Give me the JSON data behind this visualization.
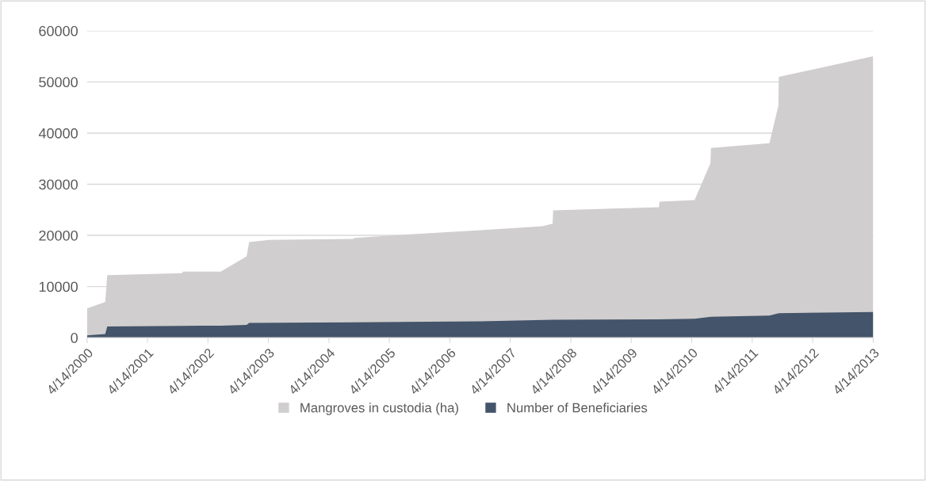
{
  "chart_data": {
    "type": "area",
    "series": [
      {
        "name": "Mangroves in custodia (ha)",
        "color": "#d0cece",
        "x": [
          "2000-04-14",
          "2000-08-02",
          "2000-08-14",
          "2001-11-10",
          "2001-11-14",
          "2002-07-01",
          "2002-12-04",
          "2002-12-19",
          "2003-04-19",
          "2004-09-10",
          "2004-09-14",
          "2005-08-14",
          "2006-10-17",
          "2007-10-25",
          "2007-12-26",
          "2007-12-29",
          "2009-09-28",
          "2009-10-01",
          "2010-05-01",
          "2010-08-05",
          "2010-08-08",
          "2011-07-27",
          "2011-09-19",
          "2011-09-22",
          "2013-04-14"
        ],
        "values": [
          5700,
          7000,
          12200,
          12600,
          12900,
          12900,
          15900,
          18700,
          19100,
          19300,
          19500,
          20200,
          21000,
          21800,
          22300,
          24900,
          25500,
          26600,
          26900,
          34100,
          37100,
          38000,
          45300,
          51000,
          55000
        ]
      },
      {
        "name": "Number of Beneficiaries",
        "color": "#44546a",
        "x": [
          "2000-04-14",
          "2000-08-02",
          "2000-08-14",
          "2001-11-14",
          "2002-07-01",
          "2002-12-04",
          "2002-12-19",
          "2004-09-14",
          "2006-10-17",
          "2007-12-29",
          "2009-10-01",
          "2010-05-01",
          "2010-08-08",
          "2011-07-27",
          "2011-09-22",
          "2013-04-14"
        ],
        "values": [
          450,
          700,
          2200,
          2300,
          2350,
          2500,
          2900,
          3000,
          3200,
          3500,
          3600,
          3700,
          4100,
          4300,
          4800,
          5000
        ]
      }
    ],
    "xlim": [
      "2000-04-14",
      "2013-04-14"
    ],
    "xticks": [
      {
        "value": "2000-04-14",
        "label": "4/14/2000"
      },
      {
        "value": "2001-04-14",
        "label": "4/14/2001"
      },
      {
        "value": "2002-04-14",
        "label": "4/14/2002"
      },
      {
        "value": "2003-04-14",
        "label": "4/14/2003"
      },
      {
        "value": "2004-04-14",
        "label": "4/14/2004"
      },
      {
        "value": "2005-04-14",
        "label": "4/14/2005"
      },
      {
        "value": "2006-04-14",
        "label": "4/14/2006"
      },
      {
        "value": "2007-04-14",
        "label": "4/14/2007"
      },
      {
        "value": "2008-04-14",
        "label": "4/14/2008"
      },
      {
        "value": "2009-04-14",
        "label": "4/14/2009"
      },
      {
        "value": "2010-04-14",
        "label": "4/14/2010"
      },
      {
        "value": "2011-04-14",
        "label": "4/14/2011"
      },
      {
        "value": "2012-04-14",
        "label": "4/14/2012"
      },
      {
        "value": "2013-04-14",
        "label": "4/14/2013"
      }
    ],
    "ylim": [
      0,
      60000
    ],
    "yticks": [
      0,
      10000,
      20000,
      30000,
      40000,
      50000,
      60000
    ],
    "grid": "y",
    "legend": "bottom"
  }
}
